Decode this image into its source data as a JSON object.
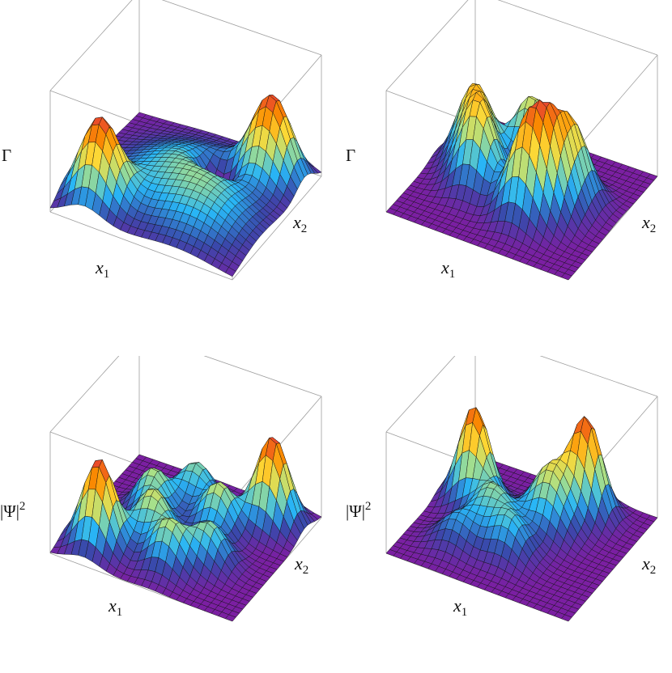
{
  "chart_data": [
    {
      "type": "surface3d",
      "z_label": "Γ",
      "x_label": "x",
      "x_label_subscript": "1",
      "y_label": "x",
      "y_label_subscript": "2",
      "grid_mesh": true,
      "bounding_box": true,
      "colormap": [
        "#7b1fa2",
        "#3949ab",
        "#29b6f6",
        "#a7e08a",
        "#fdd835",
        "#fb8c00",
        "#e53935"
      ],
      "peaks": [
        {
          "x": -1.6,
          "y": 1.6,
          "h": 1.0,
          "s": 0.5
        },
        {
          "x": 1.6,
          "y": -1.6,
          "h": 1.0,
          "s": 0.5
        },
        {
          "x": 0.0,
          "y": 0.0,
          "h": 0.45,
          "s": 1.3
        },
        {
          "x": 1.2,
          "y": 1.2,
          "h": 0.25,
          "s": 0.9
        },
        {
          "x": 0.6,
          "y": -0.6,
          "h": -0.45,
          "s": 0.35
        }
      ]
    },
    {
      "type": "surface3d",
      "z_label": "Γ",
      "x_label": "x",
      "x_label_subscript": "1",
      "y_label": "x",
      "y_label_subscript": "2",
      "grid_mesh": true,
      "bounding_box": true,
      "colormap": [
        "#7b1fa2",
        "#3949ab",
        "#29b6f6",
        "#a7e08a",
        "#fdd835",
        "#fb8c00",
        "#e53935"
      ],
      "peaks": [
        {
          "x": -1.5,
          "y": -0.4,
          "h": 0.85,
          "s": 0.45
        },
        {
          "x": -1.0,
          "y": 0.4,
          "h": 0.9,
          "s": 0.45
        },
        {
          "x": -0.3,
          "y": -1.2,
          "h": 0.8,
          "s": 0.45
        },
        {
          "x": 0.5,
          "y": 0.9,
          "h": 0.9,
          "s": 0.45
        },
        {
          "x": 1.2,
          "y": -0.4,
          "h": 0.8,
          "s": 0.45
        },
        {
          "x": 1.0,
          "y": 0.4,
          "h": 0.85,
          "s": 0.45
        }
      ]
    },
    {
      "type": "surface3d",
      "z_label": "|Ψ|",
      "z_label_superscript": "2",
      "x_label": "x",
      "x_label_subscript": "1",
      "y_label": "x",
      "y_label_subscript": "2",
      "grid_mesh": true,
      "bounding_box": true,
      "colormap": [
        "#7b1fa2",
        "#3949ab",
        "#29b6f6",
        "#a7e08a",
        "#fdd835",
        "#fb8c00",
        "#e53935"
      ],
      "peaks": [
        {
          "x": -1.6,
          "y": 1.6,
          "h": 1.0,
          "s": 0.42
        },
        {
          "x": 1.6,
          "y": -1.6,
          "h": 1.0,
          "s": 0.42
        },
        {
          "x": -0.6,
          "y": 0.6,
          "h": 0.55,
          "s": 0.42
        },
        {
          "x": 0.6,
          "y": -0.6,
          "h": 0.55,
          "s": 0.42
        },
        {
          "x": -1.1,
          "y": -0.4,
          "h": 0.5,
          "s": 0.42
        },
        {
          "x": 0.2,
          "y": 1.4,
          "h": 0.5,
          "s": 0.42
        },
        {
          "x": 1.0,
          "y": 0.7,
          "h": 0.45,
          "s": 0.42
        },
        {
          "x": -0.4,
          "y": -1.4,
          "h": 0.45,
          "s": 0.42
        }
      ]
    },
    {
      "type": "surface3d",
      "z_label": "|Ψ|",
      "z_label_superscript": "2",
      "x_label": "x",
      "x_label_subscript": "1",
      "y_label": "x",
      "y_label_subscript": "2",
      "grid_mesh": true,
      "bounding_box": true,
      "colormap": [
        "#7b1fa2",
        "#3949ab",
        "#29b6f6",
        "#a7e08a",
        "#fdd835",
        "#fb8c00",
        "#e53935"
      ],
      "peaks": [
        {
          "x": -1.6,
          "y": -0.6,
          "h": 1.0,
          "s": 0.4
        },
        {
          "x": 1.0,
          "y": -1.6,
          "h": 1.0,
          "s": 0.4
        },
        {
          "x": -0.7,
          "y": 0.2,
          "h": 0.45,
          "s": 0.45
        },
        {
          "x": 0.1,
          "y": 0.9,
          "h": 0.4,
          "s": 0.45
        },
        {
          "x": 0.6,
          "y": -0.5,
          "h": 0.45,
          "s": 0.45
        },
        {
          "x": -1.2,
          "y": 1.2,
          "h": 0.3,
          "s": 0.45
        },
        {
          "x": 0.2,
          "y": -1.0,
          "h": 0.35,
          "s": 0.45
        }
      ]
    }
  ]
}
